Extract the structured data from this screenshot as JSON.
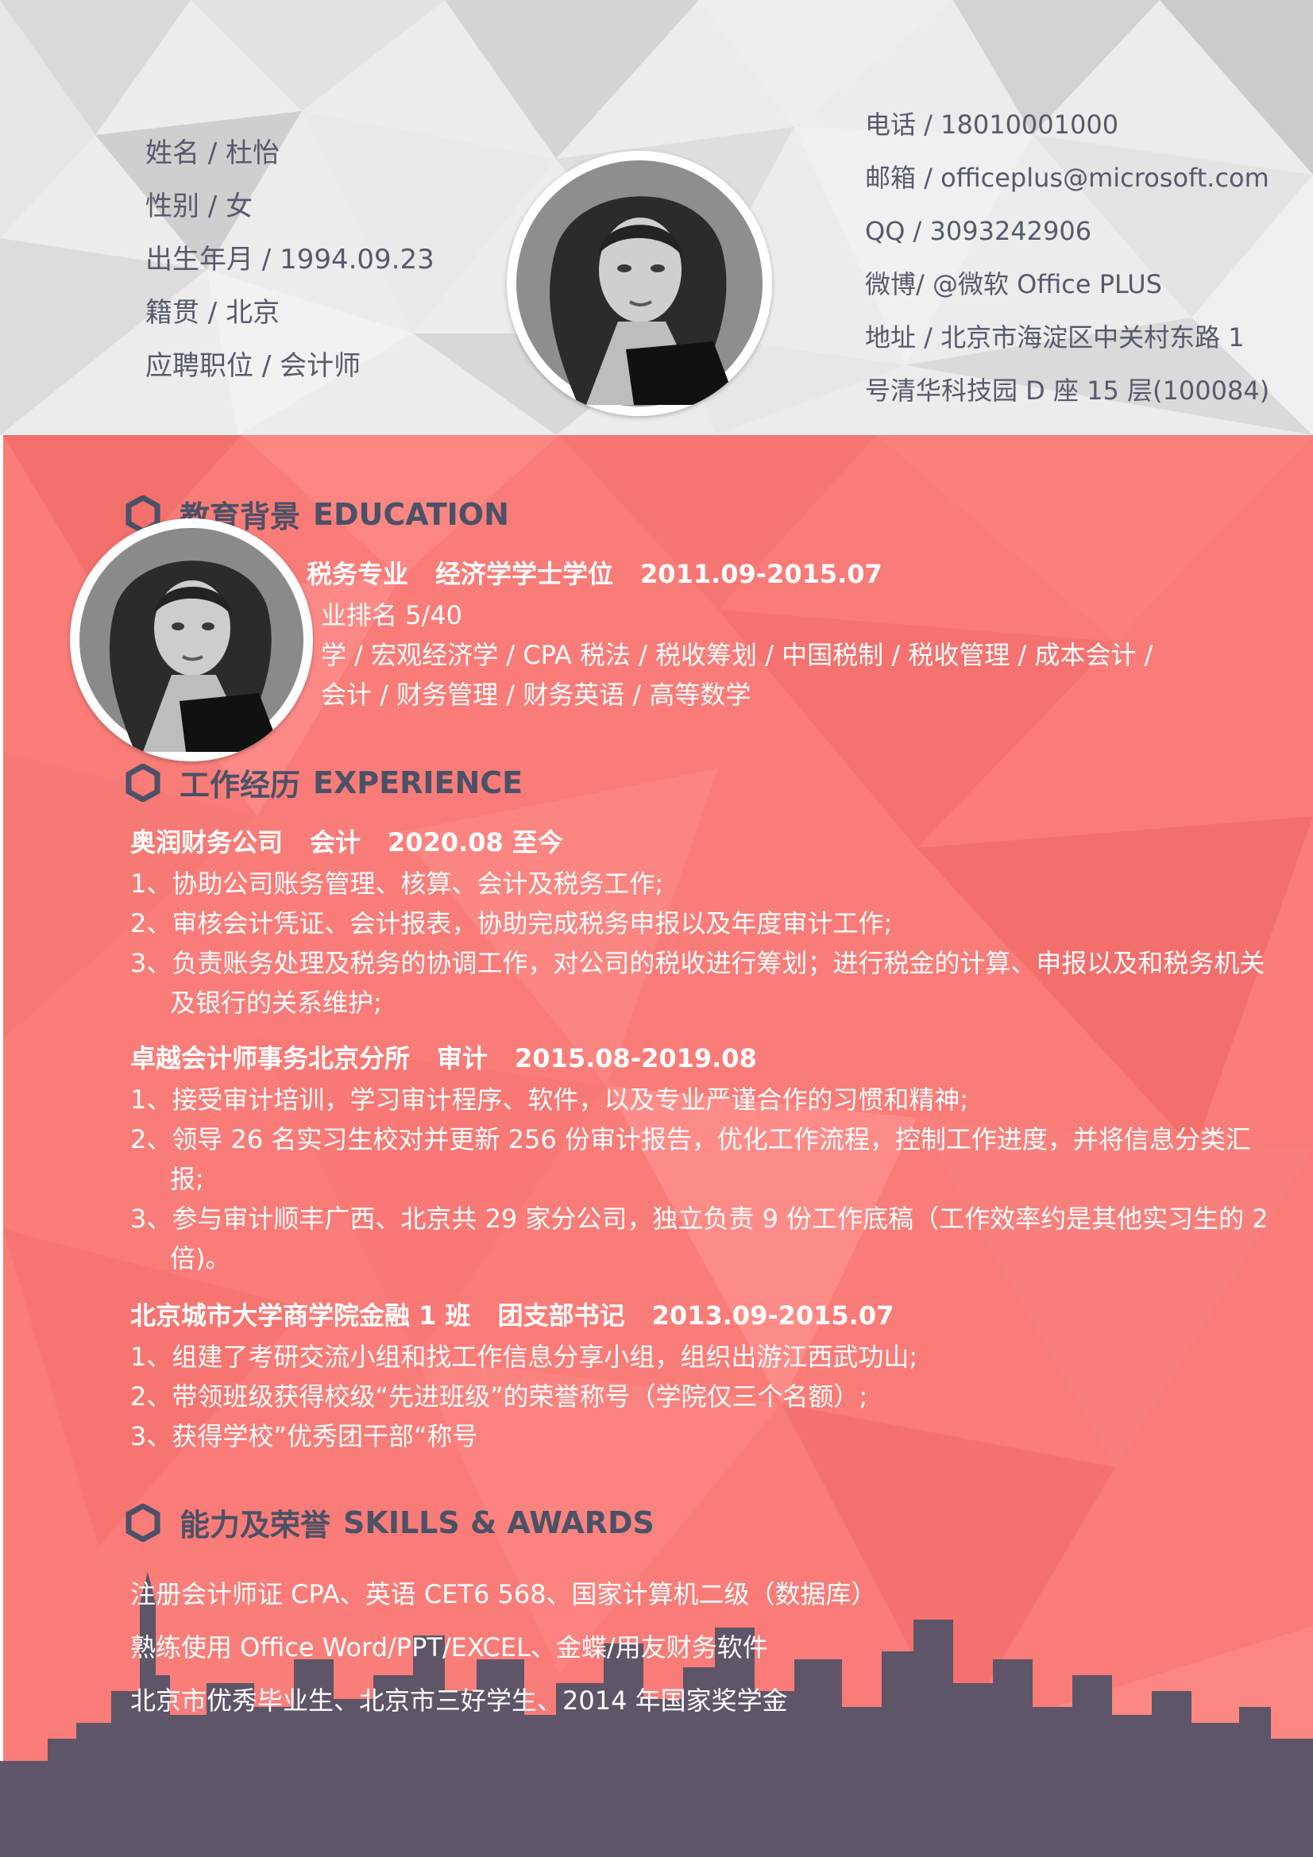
{
  "personal": {
    "rows": [
      {
        "label": "姓名",
        "sep": " / ",
        "value": "杜怡"
      },
      {
        "label": "性别",
        "sep": " / ",
        "value": "女"
      },
      {
        "label": "出生年月",
        "sep": " / ",
        "value": "1994.09.23"
      },
      {
        "label": "籍贯",
        "sep": " / ",
        "value": "北京"
      },
      {
        "label": "应聘职位",
        "sep": " / ",
        "value": "会计师"
      }
    ]
  },
  "contact": {
    "phone": "电话 / 18010001000",
    "email": "邮箱 / officeplus@microsoft.com",
    "qq": "QQ / 3093242906",
    "weibo": "微博/ @微软 Office PLUS",
    "address_1": "地址 / 北京市海淀区中关村东路 1",
    "address_2": "号清华科技园 D 座 15 层(100084)"
  },
  "education": {
    "title_cn": "教育背景",
    "title_en": "EDUCATION",
    "header": [
      "税务专业",
      "经济学学士学位",
      "2011.09-2015.07"
    ],
    "rank": "业排名 5/40",
    "courses_1": "学 / 宏观经济学 / CPA 税法 / 税收筹划 / 中国税制 / 税收管理 / 成本会计 /",
    "courses_2": "会计 / 财务管理 / 财务英语 / 高等数学"
  },
  "experience": {
    "title_cn": "工作经历",
    "title_en": "EXPERIENCE",
    "jobs": [
      {
        "header": [
          "奥润财务公司",
          "会计",
          "2020.08 至今"
        ],
        "items": [
          "1、协助公司账务管理、核算、会计及税务工作;",
          "2、审核会计凭证、会计报表，协助完成税务申报以及年度审计工作;",
          "3、负责账务处理及税务的协调工作，对公司的税收进行筹划；进行税金的计算、申报以及和税务机关",
          "及银行的关系维护;"
        ]
      },
      {
        "header": [
          "卓越会计师事务北京分所",
          "审计",
          "2015.08-2019.08"
        ],
        "items": [
          "1、接受审计培训，学习审计程序、软件，以及专业严谨合作的习惯和精神;",
          "2、领导 26 名实习生校对并更新 256 份审计报告，优化工作流程，控制工作进度，并将信息分类汇",
          "报;",
          "3、参与审计顺丰广西、北京共 29 家分公司，独立负责 9 份工作底稿（工作效率约是其他实习生的 2",
          "倍)。"
        ]
      },
      {
        "header": [
          "北京城市大学商学院金融 1 班",
          "团支部书记",
          "2013.09-2015.07"
        ],
        "items": [
          "1、组建了考研交流小组和找工作信息分享小组，组织出游江西武功山;",
          "2、带领班级获得校级“先进班级”的荣誉称号（学院仅三个名额）;",
          "3、获得学校”优秀团干部“称号"
        ]
      }
    ]
  },
  "skills": {
    "title_cn": "能力及荣誉",
    "title_en": "SKILLS & AWARDS",
    "items": [
      "注册会计师证 CPA、英语 CET6 568、国家计算机二级（数据库）",
      "熟练使用 Office Word/PPT/EXCEL、金蝶/用友财务软件",
      "北京市优秀毕业生、北京市三好学生、2014 年国家奖学金"
    ]
  },
  "colors": {
    "pink": "#f97c78",
    "dark": "#4b5166",
    "skyline": "#5e5568",
    "top_grey": "#e6e6e6"
  }
}
